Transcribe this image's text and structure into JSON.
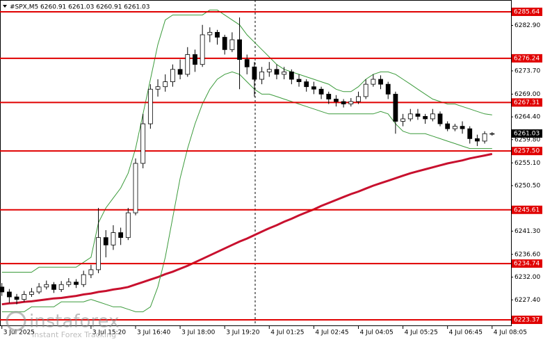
{
  "chart_data": {
    "type": "candlestick",
    "title": "#SPX,M5  6260.91 6261.03 6260.91 6261.03",
    "categories": [
      "3 Jul 2025",
      null,
      null,
      null,
      null,
      null,
      null,
      null,
      null,
      null,
      null,
      null,
      "3 Jul 15:20",
      null,
      null,
      null,
      null,
      null,
      "3 Jul 16:40",
      null,
      null,
      null,
      null,
      null,
      "3 Jul 18:00",
      null,
      null,
      null,
      null,
      null,
      "3 Jul 19:20",
      null,
      null,
      null,
      null,
      null,
      "4 Jul 01:25",
      null,
      null,
      null,
      null,
      null,
      "4 Jul 02:45",
      null,
      null,
      null,
      null,
      null,
      "4 Jul 04:05",
      null,
      null,
      null,
      null,
      null,
      "4 Jul 05:25",
      null,
      null,
      null,
      null,
      null,
      "4 Jul 06:45",
      null,
      null,
      null,
      null,
      null,
      "4 Jul 08:05"
    ],
    "open": [
      6230.0,
      6229.0,
      6228.0,
      6227.5,
      6228.5,
      6229.0,
      6230.0,
      6230.5,
      6229.5,
      6230.5,
      6231.0,
      6230.5,
      6232.5,
      6233.5,
      6240.0,
      6238.5,
      6241.0,
      6240.0,
      6245.0,
      6255.0,
      6263.0,
      6270.0,
      6270.5,
      6271.5,
      6274.0,
      6273.0,
      6277.0,
      6275.0,
      6281.0,
      6281.5,
      6280.5,
      6278.0,
      6280.0,
      6276.0,
      6274.5,
      6272.0,
      6273.5,
      6274.0,
      6273.0,
      6273.5,
      6272.0,
      6271.5,
      6270.5,
      6270.0,
      6269.0,
      6268.0,
      6267.5,
      6267.0,
      6267.5,
      6268.5,
      6271.0,
      6272.0,
      6271.0,
      6269.0,
      6263.5,
      6264.0,
      6265.0,
      6264.5,
      6264.0,
      6265.0,
      6263.0,
      6262.0,
      6262.5,
      6262.0,
      6260.0,
      6259.5,
      6261.0
    ],
    "high": [
      6230.8,
      6229.6,
      6228.6,
      6229.2,
      6229.8,
      6230.8,
      6231.3,
      6231.0,
      6231.2,
      6231.8,
      6231.6,
      6233.3,
      6234.5,
      6246.0,
      6241.5,
      6242.5,
      6242.0,
      6246.0,
      6256.0,
      6265.0,
      6271.0,
      6272.0,
      6273.0,
      6275.0,
      6276.0,
      6278.5,
      6278.0,
      6283.0,
      6282.5,
      6282.0,
      6281.0,
      6281.5,
      6284.5,
      6277.0,
      6275.5,
      6274.5,
      6275.5,
      6275.0,
      6274.5,
      6274.0,
      6273.0,
      6272.0,
      6271.5,
      6270.5,
      6269.5,
      6268.8,
      6268.0,
      6268.2,
      6269.5,
      6272.0,
      6273.0,
      6272.8,
      6271.5,
      6269.5,
      6265.0,
      6266.0,
      6266.0,
      6265.0,
      6266.0,
      6265.5,
      6263.5,
      6263.0,
      6263.5,
      6262.5,
      6260.8,
      6261.5,
      6261.3
    ],
    "low": [
      6228.2,
      6226.8,
      6226.5,
      6227.0,
      6228.0,
      6228.6,
      6229.5,
      6228.8,
      6229.0,
      6230.0,
      6229.8,
      6230.0,
      6231.8,
      6232.8,
      6236.0,
      6237.5,
      6238.5,
      6239.5,
      6244.5,
      6254.0,
      6262.0,
      6268.5,
      6269.5,
      6270.5,
      6272.0,
      6272.5,
      6273.5,
      6274.5,
      6279.5,
      6279.0,
      6277.0,
      6277.5,
      6270.0,
      6273.0,
      6268.5,
      6271.0,
      6272.5,
      6272.0,
      6272.0,
      6271.0,
      6270.5,
      6269.5,
      6269.0,
      6268.0,
      6267.0,
      6266.5,
      6266.3,
      6266.5,
      6267.0,
      6268.0,
      6270.5,
      6270.0,
      6268.0,
      6261.0,
      6262.5,
      6263.5,
      6263.8,
      6263.0,
      6263.5,
      6262.5,
      6261.5,
      6261.5,
      6261.0,
      6259.0,
      6258.5,
      6259.0,
      6260.6
    ],
    "close": [
      6229.0,
      6228.0,
      6227.5,
      6228.5,
      6229.0,
      6230.0,
      6230.5,
      6229.5,
      6230.5,
      6231.0,
      6230.5,
      6232.5,
      6233.5,
      6240.0,
      6238.5,
      6241.0,
      6240.0,
      6245.0,
      6255.0,
      6263.0,
      6270.0,
      6270.5,
      6271.5,
      6274.0,
      6273.0,
      6277.0,
      6275.0,
      6281.0,
      6281.5,
      6280.5,
      6278.0,
      6280.0,
      6276.0,
      6274.5,
      6272.0,
      6273.5,
      6274.0,
      6273.0,
      6273.5,
      6272.0,
      6271.5,
      6270.5,
      6270.0,
      6269.0,
      6268.0,
      6267.5,
      6267.0,
      6267.5,
      6268.5,
      6271.0,
      6272.0,
      6271.0,
      6269.0,
      6263.5,
      6264.0,
      6265.0,
      6264.5,
      6264.0,
      6265.0,
      6263.0,
      6262.0,
      6262.5,
      6262.0,
      6260.0,
      6259.5,
      6261.0,
      6261.03
    ],
    "indicators": [
      {
        "color": "#c8102e",
        "width": 3,
        "values": [
          6226.5,
          6226.7,
          6226.8,
          6227,
          6227.1,
          6227.3,
          6227.5,
          6227.7,
          6227.8,
          6228,
          6228.2,
          6228.5,
          6228.7,
          6229,
          6229.2,
          6229.5,
          6229.7,
          6230,
          6230.5,
          6231,
          6231.5,
          6232,
          6232.6,
          6233.1,
          6233.7,
          6234.3,
          6235,
          6235.7,
          6236.4,
          6237.1,
          6237.8,
          6238.5,
          6239.2,
          6239.8,
          6240.5,
          6241.2,
          6241.9,
          6242.5,
          6243.2,
          6243.8,
          6244.5,
          6245.1,
          6245.7,
          6246.4,
          6247,
          6247.6,
          6248.2,
          6248.8,
          6249.3,
          6249.9,
          6250.5,
          6251,
          6251.5,
          6252,
          6252.5,
          6253,
          6253.4,
          6253.8,
          6254.2,
          6254.6,
          6255,
          6255.3,
          6255.6,
          6256,
          6256.3,
          6256.6,
          6256.9
        ]
      },
      {
        "color": "#3a9a3a",
        "width": 1,
        "values": [
          6233,
          6233,
          6233,
          6233,
          6233,
          6234,
          6234,
          6234,
          6234,
          6234,
          6234,
          6235,
          6236,
          6243,
          6246,
          6248,
          6250,
          6253,
          6258,
          6265,
          6272,
          6279,
          6284,
          6285,
          6285,
          6285,
          6285,
          6285,
          6286,
          6286,
          6285,
          6284,
          6283,
          6281,
          6279.5,
          6278,
          6276.5,
          6275,
          6274,
          6273.5,
          6273,
          6272.5,
          6272,
          6271.5,
          6271,
          6270,
          6269.5,
          6269.5,
          6270.5,
          6272,
          6273,
          6273.5,
          6273.5,
          6273,
          6272,
          6271,
          6270,
          6269,
          6268,
          6267.5,
          6267,
          6267,
          6266.5,
          6266,
          6265.5,
          6265,
          6264.8
        ]
      },
      {
        "color": "#3a9a3a",
        "width": 1,
        "values": [
          6225,
          6225,
          6225,
          6225,
          6226,
          6226,
          6226,
          6226,
          6227,
          6227,
          6227,
          6227,
          6227.5,
          6227,
          6226.5,
          6226,
          6226,
          6225.5,
          6225,
          6225,
          6226,
          6230,
          6236,
          6244,
          6252,
          6258,
          6263,
          6267,
          6270,
          6272,
          6273,
          6273.5,
          6273,
          6271.5,
          6270,
          6269,
          6269,
          6268.5,
          6268,
          6267.5,
          6267,
          6266.5,
          6266,
          6265.5,
          6265,
          6265,
          6265,
          6265,
          6265,
          6265,
          6265,
          6265.5,
          6265,
          6263,
          6261.5,
          6261,
          6261,
          6261,
          6260.5,
          6260,
          6259.5,
          6259,
          6258.5,
          6258,
          6258,
          6258,
          6258
        ]
      }
    ],
    "up_color": "#ffffff",
    "down_color": "#000000",
    "ylim": [
      6222.1,
      6288.03
    ],
    "yticks": [
      {
        "value": 6282.9,
        "label": "6282.90"
      },
      {
        "value": 6273.7,
        "label": "6273.70"
      },
      {
        "value": 6269,
        "label": "6269.00"
      },
      {
        "value": 6264.4,
        "label": "6264.40"
      },
      {
        "value": 6259.8,
        "label": "6259.80"
      },
      {
        "value": 6255.1,
        "label": "6255.10"
      },
      {
        "value": 6250.5,
        "label": "6250.50"
      },
      {
        "value": 6241.3,
        "label": "6241.30"
      },
      {
        "value": 6236.6,
        "label": "6236.60"
      },
      {
        "value": 6232,
        "label": "6232.00"
      },
      {
        "value": 6227.4,
        "label": "6227.40"
      }
    ],
    "levels": [
      6285.64,
      6276.24,
      6267.31,
      {
        "value": 6257.5,
        "label": "6257.50"
      },
      6245.61,
      6234.74,
      6223.37
    ],
    "level_color": "#e00000",
    "current_price": 6261.03,
    "watermark": {
      "brand": "instaforex",
      "tagline": "Instant Forex Tracking"
    }
  }
}
